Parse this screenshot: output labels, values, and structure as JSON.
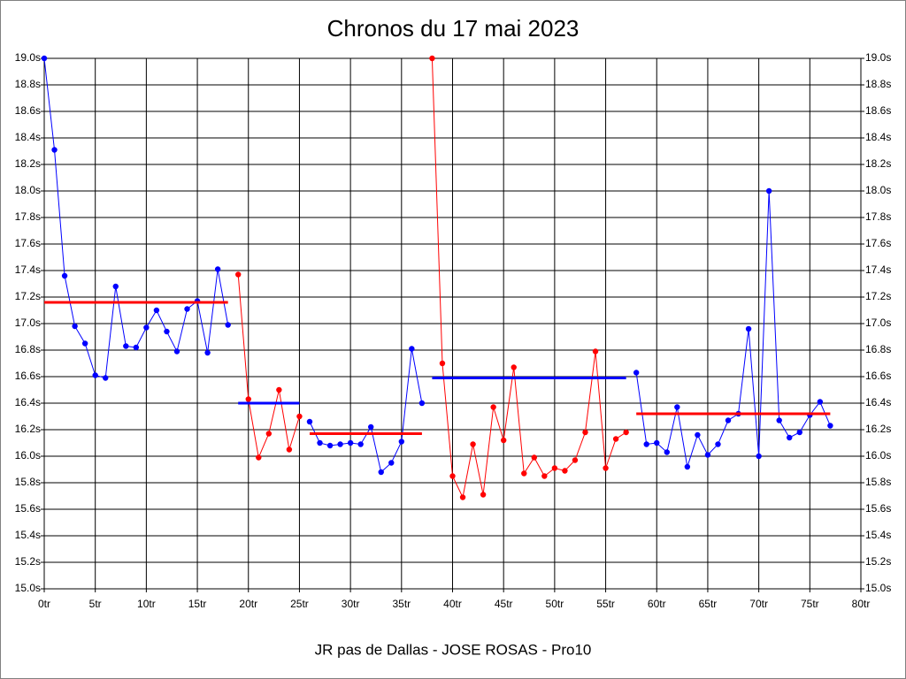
{
  "chart_data": {
    "type": "line",
    "title": "Chronos du 17 mai 2023",
    "x_label": "JR pas de Dallas - JOSE ROSAS - Pro10",
    "grid": true,
    "xlim": [
      0,
      80
    ],
    "ylim": [
      15.0,
      19.0
    ],
    "xticks": [
      {
        "value": 0,
        "label": "0tr"
      },
      {
        "value": 5,
        "label": "5tr"
      },
      {
        "value": 10,
        "label": "10tr"
      },
      {
        "value": 15,
        "label": "15tr"
      },
      {
        "value": 20,
        "label": "20tr"
      },
      {
        "value": 25,
        "label": "25tr"
      },
      {
        "value": 30,
        "label": "30tr"
      },
      {
        "value": 35,
        "label": "35tr"
      },
      {
        "value": 40,
        "label": "40tr"
      },
      {
        "value": 45,
        "label": "45tr"
      },
      {
        "value": 50,
        "label": "50tr"
      },
      {
        "value": 55,
        "label": "55tr"
      },
      {
        "value": 60,
        "label": "60tr"
      },
      {
        "value": 65,
        "label": "65tr"
      },
      {
        "value": 70,
        "label": "70tr"
      },
      {
        "value": 75,
        "label": "75tr"
      },
      {
        "value": 80,
        "label": "80tr"
      }
    ],
    "yticks": [
      {
        "value": 15.0,
        "label": "15.0s"
      },
      {
        "value": 15.2,
        "label": "15.2s"
      },
      {
        "value": 15.4,
        "label": "15.4s"
      },
      {
        "value": 15.6,
        "label": "15.6s"
      },
      {
        "value": 15.8,
        "label": "15.8s"
      },
      {
        "value": 16.0,
        "label": "16.0s"
      },
      {
        "value": 16.2,
        "label": "16.2s"
      },
      {
        "value": 16.4,
        "label": "16.4s"
      },
      {
        "value": 16.6,
        "label": "16.6s"
      },
      {
        "value": 16.8,
        "label": "16.8s"
      },
      {
        "value": 17.0,
        "label": "17.0s"
      },
      {
        "value": 17.2,
        "label": "17.2s"
      },
      {
        "value": 17.4,
        "label": "17.4s"
      },
      {
        "value": 17.6,
        "label": "17.6s"
      },
      {
        "value": 17.8,
        "label": "17.8s"
      },
      {
        "value": 18.0,
        "label": "18.0s"
      },
      {
        "value": 18.2,
        "label": "18.2s"
      },
      {
        "value": 18.4,
        "label": "18.4s"
      },
      {
        "value": 18.6,
        "label": "18.6s"
      },
      {
        "value": 18.8,
        "label": "18.8s"
      },
      {
        "value": 19.0,
        "label": "19.0s"
      }
    ],
    "series": [
      {
        "color": "#0000ff",
        "x": [
          0,
          1,
          2,
          3,
          4,
          5,
          6,
          7,
          8,
          9,
          10,
          11,
          12,
          13,
          14,
          15,
          16,
          17,
          18
        ],
        "values": [
          19.0,
          18.31,
          17.36,
          16.98,
          16.85,
          16.61,
          16.59,
          17.28,
          16.83,
          16.82,
          16.97,
          17.1,
          16.94,
          16.79,
          17.11,
          17.17,
          16.78,
          17.41,
          16.99
        ]
      },
      {
        "color": "#ff0000",
        "x": [
          19,
          20,
          21,
          22,
          23,
          24,
          25
        ],
        "values": [
          17.37,
          16.43,
          15.99,
          16.17,
          16.5,
          16.05,
          16.3
        ]
      },
      {
        "color": "#0000ff",
        "x": [
          26,
          27,
          28,
          29,
          30,
          31,
          32,
          33,
          34,
          35,
          36,
          37
        ],
        "values": [
          16.26,
          16.1,
          16.08,
          16.09,
          16.1,
          16.09,
          16.22,
          15.88,
          15.95,
          16.11,
          16.81,
          16.4
        ]
      },
      {
        "color": "#ff0000",
        "x": [
          38,
          39,
          40,
          41,
          42,
          43,
          44,
          45,
          46,
          47,
          48,
          49,
          50,
          51,
          52,
          53,
          54,
          55,
          56,
          57
        ],
        "values": [
          19.0,
          16.7,
          15.85,
          15.69,
          16.09,
          15.71,
          16.37,
          16.12,
          16.67,
          15.87,
          15.99,
          15.85,
          15.91,
          15.89,
          15.97,
          16.18,
          16.79,
          15.91,
          16.13,
          16.18
        ]
      },
      {
        "color": "#0000ff",
        "x": [
          58,
          59,
          60,
          61,
          62,
          63,
          64,
          65,
          66,
          67,
          68,
          69,
          70,
          71,
          72,
          73,
          74,
          75,
          76,
          77
        ],
        "values": [
          16.63,
          16.09,
          16.1,
          16.03,
          16.37,
          15.92,
          16.16,
          16.01,
          16.09,
          16.27,
          16.32,
          16.96,
          16.0,
          18.0,
          16.27,
          16.14,
          16.18,
          16.31,
          16.41,
          16.23
        ]
      }
    ],
    "averages": [
      {
        "color": "#ff0000",
        "x": [
          0,
          18
        ],
        "value": 17.16
      },
      {
        "color": "#0000ff",
        "x": [
          19,
          25
        ],
        "value": 16.4
      },
      {
        "color": "#ff0000",
        "x": [
          26,
          37
        ],
        "value": 16.17
      },
      {
        "color": "#0000ff",
        "x": [
          38,
          57
        ],
        "value": 16.59
      },
      {
        "color": "#ff0000",
        "x": [
          58,
          77
        ],
        "value": 16.32
      }
    ]
  }
}
